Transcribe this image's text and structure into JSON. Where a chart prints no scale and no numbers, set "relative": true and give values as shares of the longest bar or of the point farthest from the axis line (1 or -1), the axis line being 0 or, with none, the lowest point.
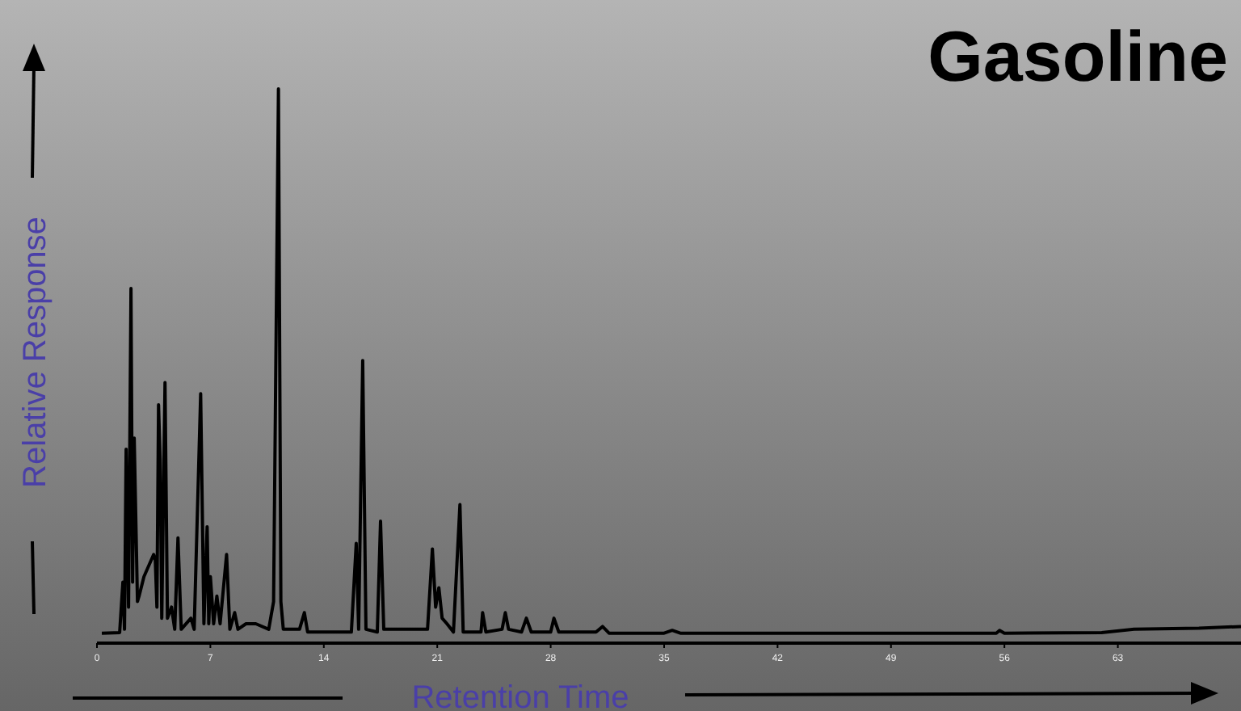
{
  "chart_data": {
    "type": "line",
    "title": "Gasoline",
    "xlabel": "Retention Time",
    "ylabel": "Relative Response",
    "relative": true,
    "xlim": [
      0,
      70.6
    ],
    "xticks": [
      0,
      7,
      14,
      21,
      28,
      35,
      42,
      49,
      56,
      63
    ],
    "marker": "none",
    "line_style": "solid",
    "series": [
      {
        "color": "#000000",
        "x": [
          0.3,
          1.4,
          1.6,
          1.7,
          1.8,
          1.95,
          2.1,
          2.2,
          2.3,
          2.5,
          2.6,
          2.9,
          3.2,
          3.5,
          3.6,
          3.7,
          3.8,
          3.9,
          4.0,
          4.2,
          4.35,
          4.6,
          4.8,
          5.0,
          5.2,
          5.8,
          6.0,
          6.4,
          6.6,
          6.8,
          6.9,
          7.0,
          7.2,
          7.4,
          7.6,
          8.0,
          8.2,
          8.5,
          8.7,
          9.2,
          9.8,
          10.6,
          10.9,
          11.2,
          11.35,
          11.5,
          12.5,
          12.8,
          13.0,
          15.7,
          16.0,
          16.15,
          16.4,
          16.6,
          17.3,
          17.5,
          17.7,
          20.4,
          20.7,
          20.9,
          21.1,
          21.3,
          21.6,
          22.0,
          22.4,
          22.6,
          23.7,
          23.8,
          24.0,
          25.0,
          25.2,
          25.4,
          26.2,
          26.5,
          26.8,
          28.0,
          28.2,
          28.5,
          30.8,
          31.2,
          31.6,
          35.0,
          35.5,
          36,
          55.5,
          55.7,
          56,
          62,
          64,
          68,
          70.6
        ],
        "values": [
          0.018,
          0.019,
          0.11,
          0.025,
          0.35,
          0.065,
          0.64,
          0.11,
          0.37,
          0.075,
          0.085,
          0.12,
          0.14,
          0.16,
          0.15,
          0.065,
          0.43,
          0.33,
          0.045,
          0.47,
          0.045,
          0.065,
          0.025,
          0.19,
          0.025,
          0.045,
          0.025,
          0.45,
          0.035,
          0.21,
          0.035,
          0.12,
          0.035,
          0.085,
          0.035,
          0.16,
          0.025,
          0.055,
          0.025,
          0.035,
          0.035,
          0.025,
          0.075,
          1.0,
          0.075,
          0.025,
          0.025,
          0.055,
          0.02,
          0.02,
          0.18,
          0.025,
          0.51,
          0.025,
          0.02,
          0.22,
          0.025,
          0.025,
          0.17,
          0.065,
          0.1,
          0.045,
          0.035,
          0.02,
          0.25,
          0.02,
          0.02,
          0.055,
          0.02,
          0.025,
          0.055,
          0.025,
          0.02,
          0.045,
          0.02,
          0.02,
          0.045,
          0.02,
          0.02,
          0.03,
          0.018,
          0.018,
          0.023,
          0.018,
          0.018,
          0.023,
          0.018,
          0.019,
          0.025,
          0.027,
          0.03
        ]
      }
    ]
  }
}
